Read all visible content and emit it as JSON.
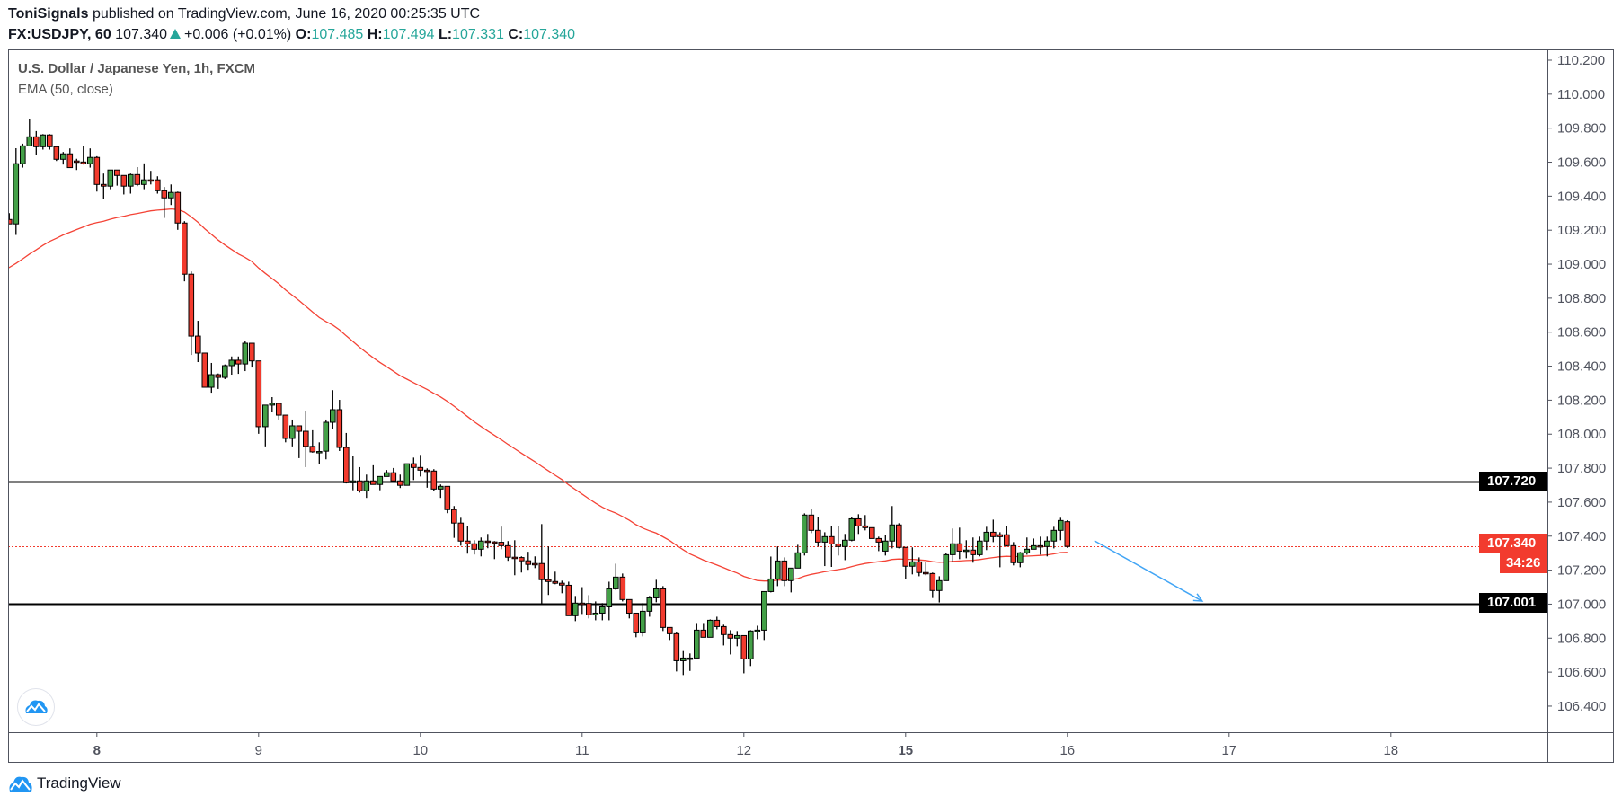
{
  "header": {
    "author": "ToniSignals",
    "published": "published on TradingView.com, June 16, 2020 00:25:35 UTC",
    "symbol": "FX:USDJPY, 60",
    "last": "107.340",
    "change": "+0.006 (+0.01%)",
    "o_label": "O:",
    "o": "107.485",
    "h_label": "H:",
    "h": "107.494",
    "l_label": "L:",
    "l": "107.331",
    "c_label": "C:",
    "c": "107.340"
  },
  "legend": {
    "title": "U.S. Dollar / Japanese Yen, 1h, FXCM",
    "indicator": "EMA (50, close)"
  },
  "badges": {
    "upper_level": "107.720",
    "last_price": "107.340",
    "countdown": "34:26",
    "lower_level": "107.001"
  },
  "footer": {
    "brand": "TradingView"
  },
  "colors": {
    "up": "#43a047",
    "down": "#f23b2e",
    "ema": "#f44336",
    "arrow": "#42a5f5",
    "level": "#000000"
  },
  "chart_data": {
    "type": "candlestick",
    "title": "U.S. Dollar / Japanese Yen, 1h, FXCM",
    "ylim": [
      106.3,
      110.25
    ],
    "y_ticks": [
      "110.200",
      "110.000",
      "109.800",
      "109.600",
      "109.400",
      "109.200",
      "109.000",
      "108.800",
      "108.600",
      "108.400",
      "108.200",
      "108.000",
      "107.800",
      "107.600",
      "107.400",
      "107.200",
      "107.000",
      "106.800",
      "106.600",
      "106.400"
    ],
    "x_ticks": [
      {
        "label": "8",
        "bar": 13,
        "bold": true
      },
      {
        "label": "9",
        "bar": 37
      },
      {
        "label": "10",
        "bar": 61
      },
      {
        "label": "11",
        "bar": 85
      },
      {
        "label": "12",
        "bar": 109
      },
      {
        "label": "15",
        "bar": 133,
        "bold": true
      },
      {
        "label": "16",
        "bar": 157
      },
      {
        "label": "17",
        "bar": 181
      },
      {
        "label": "18",
        "bar": 205
      }
    ],
    "levels": [
      107.72,
      107.001
    ],
    "last_price": 107.34,
    "ema": {
      "period": 50,
      "initial": 108.97
    },
    "arrow": {
      "from": {
        "bar": 161,
        "price": 107.373
      },
      "to": {
        "bar": 177,
        "price": 107.018
      }
    },
    "candles_ohlc": [
      [
        109.263,
        109.3,
        109.237,
        109.237
      ],
      [
        109.237,
        109.682,
        109.172,
        109.591
      ],
      [
        109.591,
        109.709,
        109.568,
        109.696
      ],
      [
        109.696,
        109.855,
        109.696,
        109.749
      ],
      [
        109.749,
        109.783,
        109.642,
        109.691
      ],
      [
        109.691,
        109.765,
        109.674,
        109.76
      ],
      [
        109.76,
        109.765,
        109.674,
        109.691
      ],
      [
        109.691,
        109.691,
        109.607,
        109.617
      ],
      [
        109.617,
        109.66,
        109.586,
        109.649
      ],
      [
        109.649,
        109.681,
        109.568,
        109.568
      ],
      [
        109.607,
        109.62,
        109.554,
        109.6
      ],
      [
        109.601,
        109.696,
        109.586,
        109.591
      ],
      [
        109.591,
        109.681,
        109.568,
        109.628
      ],
      [
        109.628,
        109.635,
        109.427,
        109.469
      ],
      [
        109.469,
        109.533,
        109.385,
        109.459
      ],
      [
        109.459,
        109.554,
        109.441,
        109.554
      ],
      [
        109.554,
        109.554,
        109.462,
        109.522
      ],
      [
        109.522,
        109.522,
        109.41,
        109.459
      ],
      [
        109.459,
        109.533,
        109.415,
        109.527
      ],
      [
        109.527,
        109.571,
        109.459,
        109.469
      ],
      [
        109.469,
        109.593,
        109.441,
        109.496
      ],
      [
        109.496,
        109.549,
        109.469,
        109.494
      ],
      [
        109.496,
        109.517,
        109.415,
        109.432
      ],
      [
        109.432,
        109.454,
        109.272,
        109.39
      ],
      [
        109.39,
        109.469,
        109.348,
        109.422
      ],
      [
        109.422,
        109.427,
        109.202,
        109.242
      ],
      [
        109.242,
        109.253,
        108.899,
        108.941
      ],
      [
        108.941,
        108.957,
        108.466,
        108.577
      ],
      [
        108.577,
        108.667,
        108.424,
        108.477
      ],
      [
        108.477,
        108.477,
        108.276,
        108.276
      ],
      [
        108.276,
        108.419,
        108.244,
        108.35
      ],
      [
        108.35,
        108.357,
        108.266,
        108.334
      ],
      [
        108.334,
        108.41,
        108.324,
        108.403
      ],
      [
        108.403,
        108.457,
        108.35,
        108.435
      ],
      [
        108.435,
        108.457,
        108.355,
        108.413
      ],
      [
        108.413,
        108.551,
        108.371,
        108.535
      ],
      [
        108.535,
        108.535,
        108.392,
        108.431
      ],
      [
        108.431,
        108.431,
        108.002,
        108.044
      ],
      [
        108.044,
        108.171,
        107.928,
        108.171
      ],
      [
        108.171,
        108.218,
        108.128,
        108.181
      ],
      [
        108.181,
        108.181,
        108.086,
        108.112
      ],
      [
        108.112,
        108.112,
        107.952,
        107.975
      ],
      [
        107.975,
        108.086,
        107.928,
        108.049
      ],
      [
        108.049,
        108.049,
        107.859,
        108.017
      ],
      [
        108.017,
        108.134,
        107.806,
        107.928
      ],
      [
        107.928,
        108.023,
        107.891,
        107.896
      ],
      [
        107.898,
        107.952,
        107.822,
        107.898
      ],
      [
        107.9,
        108.086,
        107.852,
        108.07
      ],
      [
        108.07,
        108.259,
        108.031,
        108.144
      ],
      [
        108.144,
        108.202,
        107.901,
        107.922
      ],
      [
        107.922,
        108.007,
        107.71,
        107.714
      ],
      [
        107.714,
        107.87,
        107.67,
        107.725
      ],
      [
        107.725,
        107.806,
        107.656,
        107.667
      ],
      [
        107.667,
        107.762,
        107.625,
        107.725
      ],
      [
        107.725,
        107.817,
        107.704,
        107.704
      ],
      [
        107.704,
        107.751,
        107.67,
        107.751
      ],
      [
        107.751,
        107.789,
        107.751,
        107.773
      ],
      [
        107.773,
        107.801,
        107.725,
        107.725
      ],
      [
        107.725,
        107.762,
        107.683,
        107.699
      ],
      [
        107.699,
        107.826,
        107.699,
        107.826
      ],
      [
        107.826,
        107.862,
        107.73,
        107.804
      ],
      [
        107.804,
        107.878,
        107.751,
        107.788
      ],
      [
        107.788,
        107.799,
        107.685,
        107.783
      ],
      [
        107.783,
        107.794,
        107.665,
        107.677
      ],
      [
        107.677,
        107.704,
        107.625,
        107.693
      ],
      [
        107.693,
        107.693,
        107.535,
        107.556
      ],
      [
        107.556,
        107.577,
        107.39,
        107.477
      ],
      [
        107.477,
        107.508,
        107.344,
        107.371
      ],
      [
        107.371,
        107.461,
        107.297,
        107.355
      ],
      [
        107.355,
        107.376,
        107.292,
        107.323
      ],
      [
        107.323,
        107.392,
        107.281,
        107.371
      ],
      [
        107.371,
        107.413,
        107.329,
        107.366
      ],
      [
        107.366,
        107.371,
        107.265,
        107.364
      ],
      [
        107.364,
        107.456,
        107.323,
        107.344
      ],
      [
        107.344,
        107.371,
        107.255,
        107.276
      ],
      [
        107.276,
        107.376,
        107.17,
        107.274
      ],
      [
        107.274,
        107.281,
        107.186,
        107.255
      ],
      [
        107.255,
        107.308,
        107.202,
        107.234
      ],
      [
        107.239,
        107.281,
        107.212,
        107.234
      ],
      [
        107.239,
        107.471,
        106.996,
        107.144
      ],
      [
        107.144,
        107.339,
        107.054,
        107.133
      ],
      [
        107.133,
        107.191,
        107.117,
        107.123
      ],
      [
        107.123,
        107.138,
        107.064,
        107.112
      ],
      [
        107.111,
        107.132,
        106.932,
        106.932
      ],
      [
        106.932,
        107.048,
        106.9,
        107.006
      ],
      [
        107.006,
        107.1,
        106.942,
        107.004
      ],
      [
        107.004,
        107.053,
        106.916,
        106.937
      ],
      [
        106.937,
        107.016,
        106.905,
        106.947
      ],
      [
        106.947,
        107.006,
        106.905,
        106.984
      ],
      [
        106.984,
        107.132,
        106.905,
        107.09
      ],
      [
        107.09,
        107.238,
        107.083,
        107.159
      ],
      [
        107.159,
        107.18,
        107.016,
        107.027
      ],
      [
        107.027,
        107.027,
        106.916,
        106.947
      ],
      [
        106.947,
        106.947,
        106.805,
        106.831
      ],
      [
        106.831,
        107.006,
        106.81,
        106.958
      ],
      [
        106.958,
        107.048,
        106.926,
        107.037
      ],
      [
        107.037,
        107.143,
        107.011,
        107.09
      ],
      [
        107.09,
        107.106,
        106.842,
        106.863
      ],
      [
        106.863,
        106.863,
        106.789,
        106.826
      ],
      [
        106.826,
        106.837,
        106.604,
        106.667
      ],
      [
        106.667,
        106.724,
        106.583,
        106.683
      ],
      [
        106.683,
        106.71,
        106.607,
        106.683
      ],
      [
        106.683,
        106.889,
        106.683,
        106.847
      ],
      [
        106.847,
        106.889,
        106.805,
        106.805
      ],
      [
        106.805,
        106.91,
        106.805,
        106.905
      ],
      [
        106.905,
        106.926,
        106.852,
        106.868
      ],
      [
        106.868,
        106.879,
        106.757,
        106.821
      ],
      [
        106.821,
        106.847,
        106.704,
        106.8
      ],
      [
        106.8,
        106.842,
        106.752,
        106.815
      ],
      [
        106.815,
        106.815,
        106.593,
        106.678
      ],
      [
        106.678,
        106.847,
        106.636,
        106.842
      ],
      [
        106.842,
        106.873,
        106.794,
        106.847
      ],
      [
        106.847,
        107.074,
        106.789,
        107.074
      ],
      [
        107.074,
        107.28,
        107.069,
        107.148
      ],
      [
        107.148,
        107.339,
        107.106,
        107.254
      ],
      [
        107.254,
        107.275,
        107.106,
        107.138
      ],
      [
        107.138,
        107.212,
        107.069,
        107.212
      ],
      [
        107.212,
        107.349,
        107.212,
        107.302
      ],
      [
        107.302,
        107.534,
        107.286,
        107.524
      ],
      [
        107.524,
        107.561,
        107.418,
        107.434
      ],
      [
        107.434,
        107.513,
        107.339,
        107.365
      ],
      [
        107.365,
        107.423,
        107.224,
        107.397
      ],
      [
        107.397,
        107.46,
        107.219,
        107.354
      ],
      [
        107.354,
        107.46,
        107.286,
        107.339
      ],
      [
        107.339,
        107.413,
        107.259,
        107.376
      ],
      [
        107.376,
        107.513,
        107.37,
        107.502
      ],
      [
        107.502,
        107.529,
        107.413,
        107.46
      ],
      [
        107.46,
        107.524,
        107.434,
        107.45
      ],
      [
        107.45,
        107.45,
        107.386,
        107.386
      ],
      [
        107.386,
        107.397,
        107.312,
        107.365
      ],
      [
        107.312,
        107.408,
        107.286,
        107.371
      ],
      [
        107.371,
        107.577,
        107.328,
        107.466
      ],
      [
        107.466,
        107.476,
        107.328,
        107.334
      ],
      [
        107.334,
        107.334,
        107.149,
        107.223
      ],
      [
        107.223,
        107.334,
        107.175,
        107.249
      ],
      [
        107.249,
        107.275,
        107.164,
        107.186
      ],
      [
        107.186,
        107.249,
        107.17,
        107.18
      ],
      [
        107.18,
        107.186,
        107.036,
        107.08
      ],
      [
        107.08,
        107.164,
        107.01,
        107.138
      ],
      [
        107.138,
        107.302,
        107.138,
        107.291
      ],
      [
        107.291,
        107.445,
        107.249,
        107.355
      ],
      [
        107.355,
        107.45,
        107.265,
        107.312
      ],
      [
        107.312,
        107.376,
        107.27,
        107.318
      ],
      [
        107.318,
        107.392,
        107.244,
        107.291
      ],
      [
        107.291,
        107.397,
        107.281,
        107.371
      ],
      [
        107.371,
        107.455,
        107.318,
        107.423
      ],
      [
        107.423,
        107.497,
        107.365,
        107.397
      ],
      [
        107.408,
        107.423,
        107.217,
        107.397
      ],
      [
        107.408,
        107.46,
        107.339,
        107.344
      ],
      [
        107.344,
        107.365,
        107.228,
        107.244
      ],
      [
        107.244,
        107.307,
        107.217,
        107.302
      ],
      [
        107.302,
        107.392,
        107.291,
        107.323
      ],
      [
        107.323,
        107.386,
        107.323,
        107.344
      ],
      [
        107.344,
        107.397,
        107.291,
        107.339
      ],
      [
        107.339,
        107.397,
        107.281,
        107.371
      ],
      [
        107.371,
        107.455,
        107.328,
        107.434
      ],
      [
        107.434,
        107.508,
        107.376,
        107.492
      ],
      [
        107.485,
        107.494,
        107.331,
        107.34
      ]
    ]
  }
}
